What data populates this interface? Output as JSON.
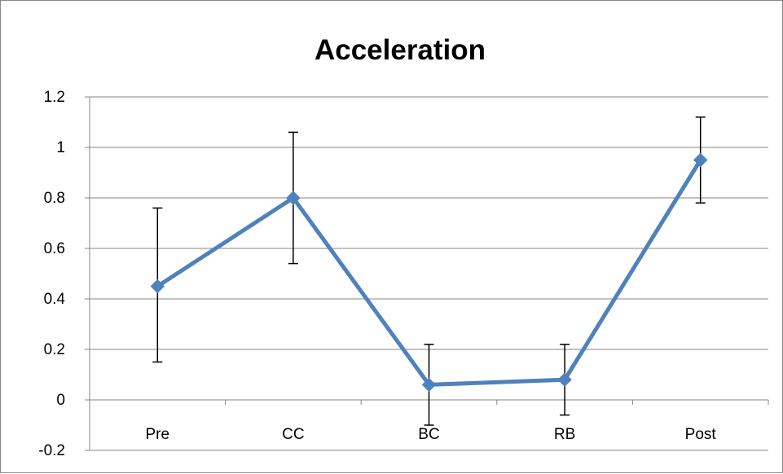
{
  "chart_data": {
    "type": "line",
    "title": "Acceleration",
    "xlabel": "",
    "ylabel": "",
    "categories": [
      "Pre",
      "CC",
      "BC",
      "RB",
      "Post"
    ],
    "series": [
      {
        "values": [
          0.45,
          0.8,
          0.06,
          0.08,
          0.95
        ],
        "error_upper": [
          0.76,
          1.06,
          0.22,
          0.22,
          1.12
        ],
        "error_lower": [
          0.15,
          0.54,
          -0.1,
          -0.06,
          0.78
        ]
      }
    ],
    "ylim": [
      -0.2,
      1.2
    ],
    "yticks": [
      "-0.2",
      "0",
      "0.2",
      "0.4",
      "0.6",
      "0.8",
      "1",
      "1.2"
    ],
    "grid": true,
    "legend": "none",
    "colors": {
      "series": "#4F81BD",
      "marker": "#4F81BD",
      "error_bar": "#000000",
      "grid": "#868686",
      "axis": "#868686"
    }
  }
}
